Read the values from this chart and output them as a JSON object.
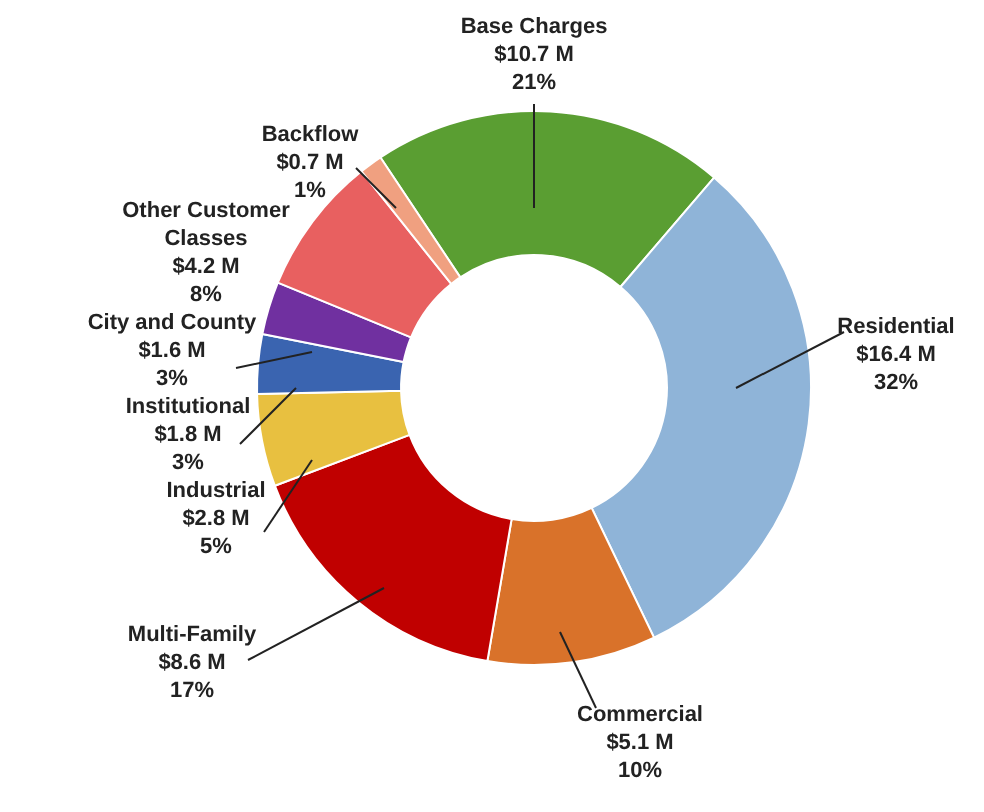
{
  "chart_data": {
    "type": "donut",
    "categories": [
      "Base Charges",
      "Residential",
      "Commercial",
      "Multi-Family",
      "Industrial",
      "Institutional",
      "City and County",
      "Other Customer Classes",
      "Backflow"
    ],
    "values": [
      10.7,
      16.4,
      5.1,
      8.6,
      2.8,
      1.8,
      1.6,
      4.2,
      0.7
    ],
    "colors": [
      "#5a9e32",
      "#8fb4d8",
      "#d9722a",
      "#c00000",
      "#e8c040",
      "#3a64b0",
      "#7030a0",
      "#e86060",
      "#f0a080"
    ],
    "value_labels": [
      "$10.7 M\n21%",
      "$16.4 M\n32%",
      "$5.1 M\n10%",
      "$8.6 M\n17%",
      "$2.8 M\n5%",
      "$1.8 M\n3%",
      "$1.6 M\n3%",
      "$4.2 M\n8%",
      "$0.7 M\n1%"
    ],
    "legend": false
  }
}
